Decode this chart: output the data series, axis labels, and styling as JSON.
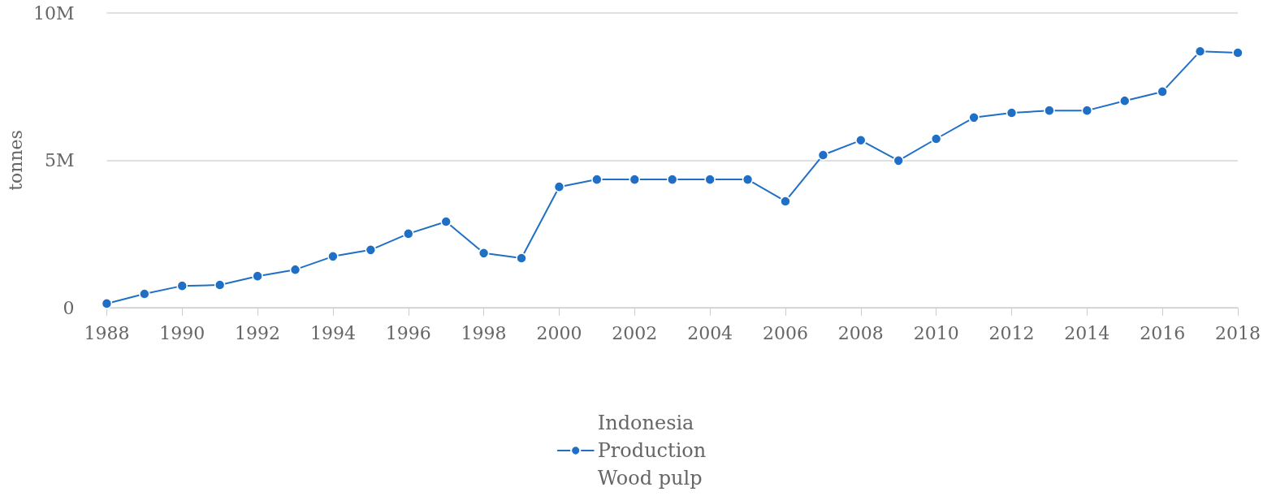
{
  "chart_data": {
    "type": "line",
    "ylabel": "tonnes",
    "x": [
      1988,
      1989,
      1990,
      1991,
      1992,
      1993,
      1994,
      1995,
      1996,
      1997,
      1998,
      1999,
      2000,
      2001,
      2002,
      2003,
      2004,
      2005,
      2006,
      2007,
      2008,
      2009,
      2010,
      2011,
      2012,
      2013,
      2014,
      2015,
      2016,
      2017,
      2018
    ],
    "series": [
      {
        "name": "Indonesia\nProduction\nWood pulp",
        "color": "#1f6fc6",
        "values": [
          140000,
          470000,
          740000,
          770000,
          1070000,
          1290000,
          1740000,
          1960000,
          2510000,
          2920000,
          1850000,
          1680000,
          4100000,
          4350000,
          4350000,
          4350000,
          4350000,
          4350000,
          3610000,
          5180000,
          5680000,
          4990000,
          5730000,
          6450000,
          6610000,
          6690000,
          6690000,
          7020000,
          7330000,
          8700000,
          8650000
        ]
      }
    ],
    "xlim": [
      1988,
      2018
    ],
    "xticks": [
      1988,
      1990,
      1992,
      1994,
      1996,
      1998,
      2000,
      2002,
      2004,
      2006,
      2008,
      2010,
      2012,
      2014,
      2016,
      2018
    ],
    "ylim": [
      0,
      10000000
    ],
    "yticks": [
      {
        "value": 0,
        "label": "0"
      },
      {
        "value": 5000000,
        "label": "5M"
      },
      {
        "value": 10000000,
        "label": "10M"
      }
    ],
    "grid": "y",
    "legend": "bottom",
    "marker": "circle",
    "line_style": "solid"
  }
}
